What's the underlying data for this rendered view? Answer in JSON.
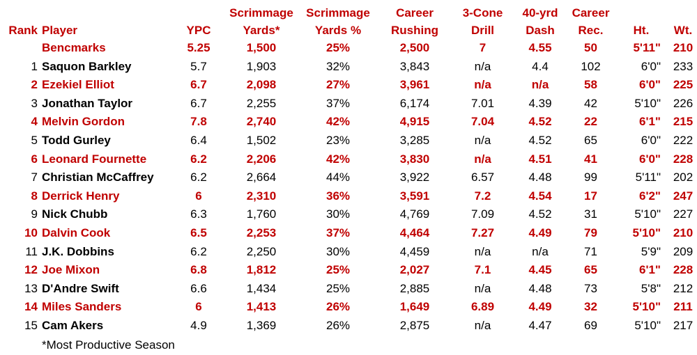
{
  "header": {
    "top": [
      "",
      "",
      "",
      "Scrimmage",
      "Scrimmage",
      "Career",
      "3-Cone",
      "40-yrd",
      "Career",
      "",
      ""
    ],
    "bottom": [
      "Rank",
      "Player",
      "YPC",
      "Yards*",
      "Yards %",
      "Rushing",
      "Drill",
      "Dash",
      "Rec.",
      "Ht.",
      "Wt."
    ]
  },
  "rows": [
    {
      "rank": "",
      "player": "Bencmarks",
      "ypc": "5.25",
      "yards": "1,500",
      "pct": "25%",
      "rushing": "2,500",
      "cone": "7",
      "dash": "4.55",
      "rec": "50",
      "ht": "5'11\"",
      "wt": "210",
      "style": "red"
    },
    {
      "rank": "1",
      "player": "Saquon Barkley",
      "ypc": "5.7",
      "yards": "1,903",
      "pct": "32%",
      "rushing": "3,843",
      "cone": "n/a",
      "dash": "4.4",
      "rec": "102",
      "ht": "6'0\"",
      "wt": "233",
      "style": "black"
    },
    {
      "rank": "2",
      "player": "Ezekiel Elliot",
      "ypc": "6.7",
      "yards": "2,098",
      "pct": "27%",
      "rushing": "3,961",
      "cone": "n/a",
      "dash": "n/a",
      "rec": "58",
      "ht": "6'0\"",
      "wt": "225",
      "style": "red"
    },
    {
      "rank": "3",
      "player": "Jonathan Taylor",
      "ypc": "6.7",
      "yards": "2,255",
      "pct": "37%",
      "rushing": "6,174",
      "cone": "7.01",
      "dash": "4.39",
      "rec": "42",
      "ht": "5'10\"",
      "wt": "226",
      "style": "black"
    },
    {
      "rank": "4",
      "player": "Melvin Gordon",
      "ypc": "7.8",
      "yards": "2,740",
      "pct": "42%",
      "rushing": "4,915",
      "cone": "7.04",
      "dash": "4.52",
      "rec": "22",
      "ht": "6'1\"",
      "wt": "215",
      "style": "red"
    },
    {
      "rank": "5",
      "player": "Todd Gurley",
      "ypc": "6.4",
      "yards": "1,502",
      "pct": "23%",
      "rushing": "3,285",
      "cone": "n/a",
      "dash": "4.52",
      "rec": "65",
      "ht": "6'0\"",
      "wt": "222",
      "style": "black"
    },
    {
      "rank": "6",
      "player": "Leonard Fournette",
      "ypc": "6.2",
      "yards": "2,206",
      "pct": "42%",
      "rushing": "3,830",
      "cone": "n/a",
      "dash": "4.51",
      "rec": "41",
      "ht": "6'0\"",
      "wt": "228",
      "style": "red"
    },
    {
      "rank": "7",
      "player": "Christian McCaffrey",
      "ypc": "6.2",
      "yards": "2,664",
      "pct": "44%",
      "rushing": "3,922",
      "cone": "6.57",
      "dash": "4.48",
      "rec": "99",
      "ht": "5'11\"",
      "wt": "202",
      "style": "black"
    },
    {
      "rank": "8",
      "player": "Derrick Henry",
      "ypc": "6",
      "yards": "2,310",
      "pct": "36%",
      "rushing": "3,591",
      "cone": "7.2",
      "dash": "4.54",
      "rec": "17",
      "ht": "6'2\"",
      "wt": "247",
      "style": "red"
    },
    {
      "rank": "9",
      "player": "Nick Chubb",
      "ypc": "6.3",
      "yards": "1,760",
      "pct": "30%",
      "rushing": "4,769",
      "cone": "7.09",
      "dash": "4.52",
      "rec": "31",
      "ht": "5'10\"",
      "wt": "227",
      "style": "black"
    },
    {
      "rank": "10",
      "player": "Dalvin Cook",
      "ypc": "6.5",
      "yards": "2,253",
      "pct": "37%",
      "rushing": "4,464",
      "cone": "7.27",
      "dash": "4.49",
      "rec": "79",
      "ht": "5'10\"",
      "wt": "210",
      "style": "red"
    },
    {
      "rank": "11",
      "player": "J.K. Dobbins",
      "ypc": "6.2",
      "yards": "2,250",
      "pct": "30%",
      "rushing": "4,459",
      "cone": "n/a",
      "dash": "n/a",
      "rec": "71",
      "ht": "5'9\"",
      "wt": "209",
      "style": "black"
    },
    {
      "rank": "12",
      "player": "Joe Mixon",
      "ypc": "6.8",
      "yards": "1,812",
      "pct": "25%",
      "rushing": "2,027",
      "cone": "7.1",
      "dash": "4.45",
      "rec": "65",
      "ht": "6'1\"",
      "wt": "228",
      "style": "red"
    },
    {
      "rank": "13",
      "player": "D'Andre Swift",
      "ypc": "6.6",
      "yards": "1,434",
      "pct": "25%",
      "rushing": "2,885",
      "cone": "n/a",
      "dash": "4.48",
      "rec": "73",
      "ht": "5'8\"",
      "wt": "212",
      "style": "black"
    },
    {
      "rank": "14",
      "player": "Miles Sanders",
      "ypc": "6",
      "yards": "1,413",
      "pct": "26%",
      "rushing": "1,649",
      "cone": "6.89",
      "dash": "4.49",
      "rec": "32",
      "ht": "5'10\"",
      "wt": "211",
      "style": "red"
    },
    {
      "rank": "15",
      "player": "Cam Akers",
      "ypc": "4.9",
      "yards": "1,369",
      "pct": "26%",
      "rushing": "2,875",
      "cone": "n/a",
      "dash": "4.47",
      "rec": "69",
      "ht": "5'10\"",
      "wt": "217",
      "style": "black"
    }
  ],
  "footnote": "*Most Productive Season",
  "colors": {
    "accent": "#c00000",
    "text": "#000000"
  }
}
